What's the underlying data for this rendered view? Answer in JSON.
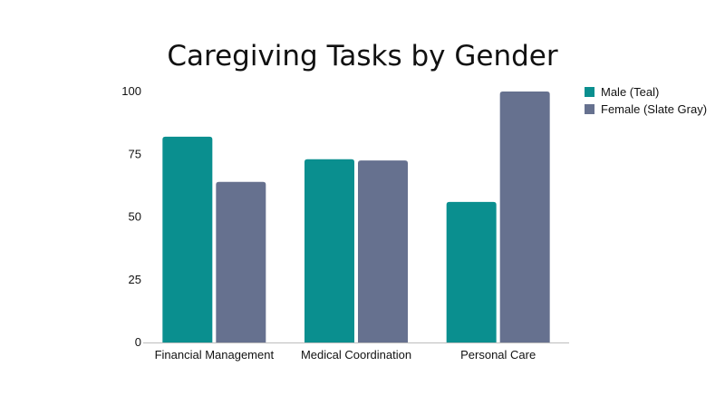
{
  "chart_data": {
    "type": "bar",
    "title": "Caregiving Tasks by Gender",
    "xlabel": "",
    "ylabel": "",
    "categories": [
      "Financial Management",
      "Medical Coordination",
      "Personal Care"
    ],
    "series": [
      {
        "name": "Male (Teal)",
        "color": "#0a8f8f",
        "values": [
          82,
          73,
          56
        ]
      },
      {
        "name": "Female (Slate Gray)",
        "color": "#66718f",
        "values": [
          64,
          72.5,
          100
        ]
      }
    ],
    "ylim": [
      0,
      100
    ],
    "yticks": [
      0,
      25,
      50,
      75,
      100
    ],
    "grid": false,
    "legend_position": "top-right"
  }
}
